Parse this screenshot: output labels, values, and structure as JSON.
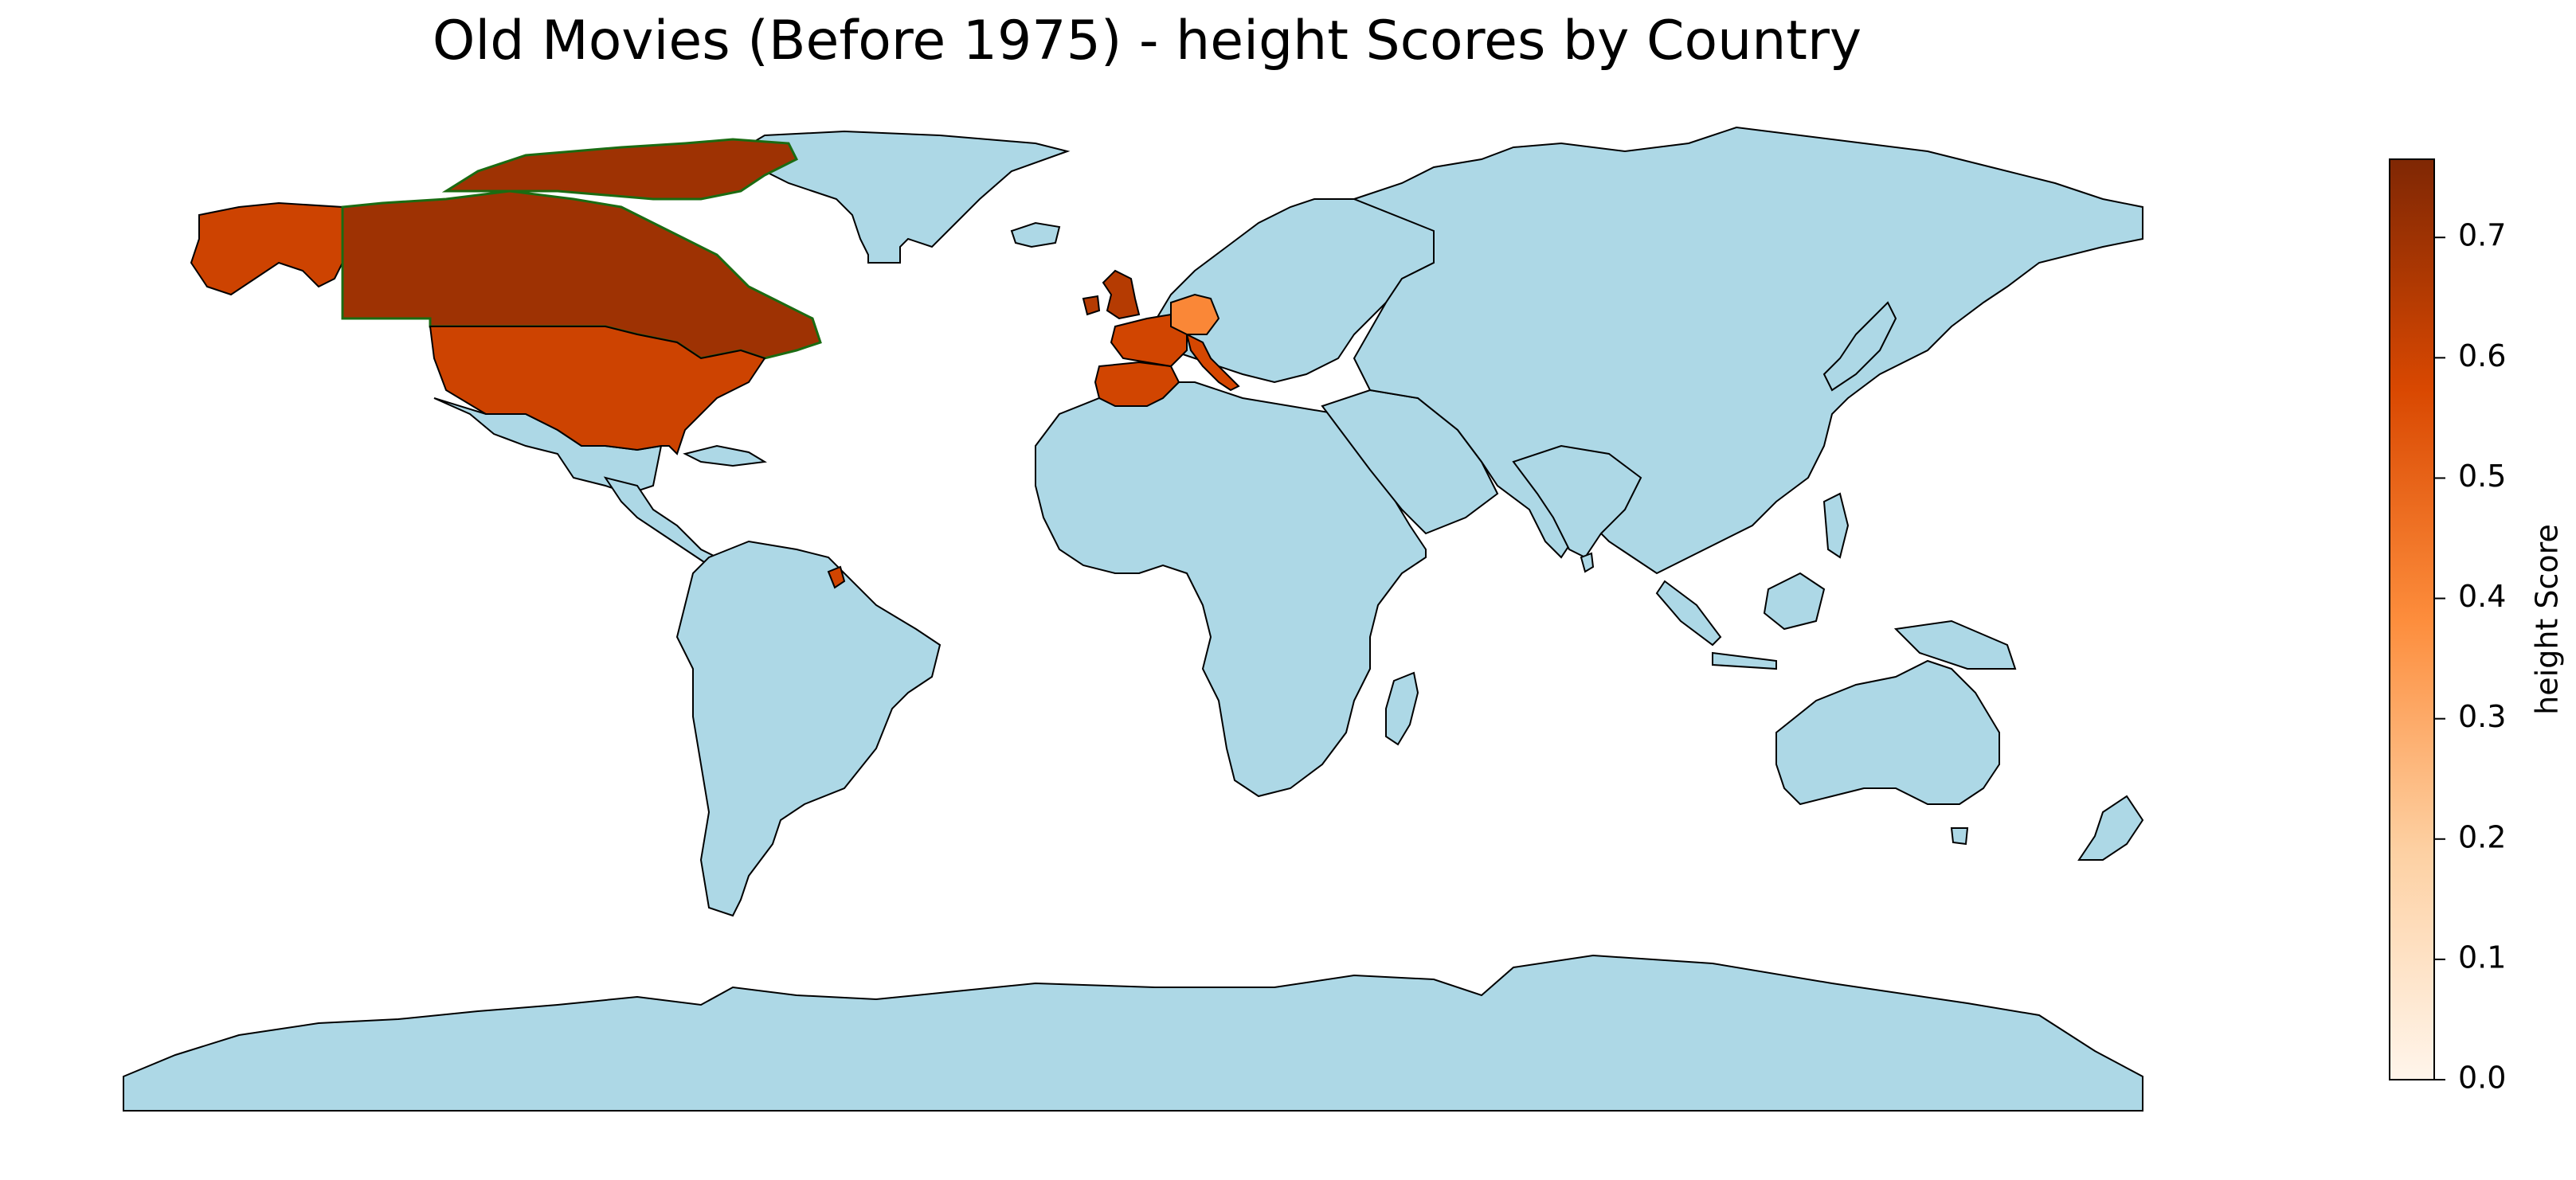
{
  "title": "Old Movies (Before 1975) - height Scores by Country",
  "colors": {
    "default_land": "#add8e6",
    "border": "#000000",
    "highlight_border": "#1b6b12",
    "scale_low": "#fff5eb",
    "scale_mid": "#fd8d3c",
    "scale_high": "#7f2704"
  },
  "colorbar": {
    "label": "height Score",
    "min": 0.0,
    "max": 0.765,
    "ticks": [
      "0.0",
      "0.1",
      "0.2",
      "0.3",
      "0.4",
      "0.5",
      "0.6",
      "0.7"
    ]
  },
  "chart_data": {
    "type": "choropleth",
    "metric": "height Score",
    "countries": [
      {
        "name": "Canada",
        "value": 0.7
      },
      {
        "name": "United Kingdom",
        "value": 0.65
      },
      {
        "name": "United States",
        "value": 0.6
      },
      {
        "name": "France",
        "value": 0.59
      },
      {
        "name": "Italy",
        "value": 0.58
      },
      {
        "name": "Spain",
        "value": 0.59
      },
      {
        "name": "Germany",
        "value": 0.4
      }
    ]
  }
}
